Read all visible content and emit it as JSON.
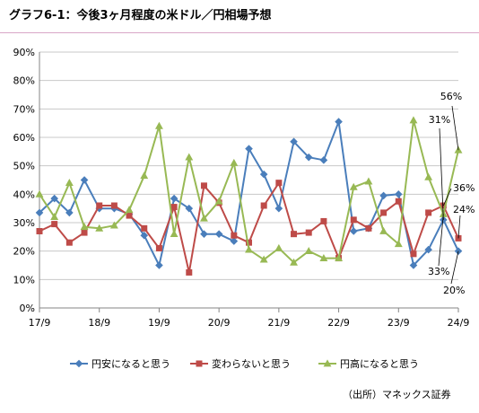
{
  "title": "グラフ6-1：今後3ヶ月程度の米ドル／円相場予想",
  "source": "（出所）マネックス証券",
  "chart_data": {
    "type": "line",
    "title": "グラフ6-1：今後3ヶ月程度の米ドル／円相場予想",
    "xlabel": "",
    "ylabel": "",
    "ylim": [
      0,
      90
    ],
    "yticks": [
      0,
      10,
      20,
      30,
      40,
      50,
      60,
      70,
      80,
      90
    ],
    "ytick_labels": [
      "0%",
      "10%",
      "20%",
      "30%",
      "40%",
      "50%",
      "60%",
      "70%",
      "80%",
      "90%"
    ],
    "x_tick_labels": [
      "17/9",
      "18/9",
      "19/9",
      "20/9",
      "21/9",
      "22/9",
      "23/9",
      "24/9"
    ],
    "grid": true,
    "legend_position": "bottom",
    "series": [
      {
        "name": "円安になると思う",
        "color": "#4a7ebb",
        "marker": "diamond",
        "values": [
          33.5,
          38.5,
          33.5,
          45,
          35,
          35,
          33,
          25.5,
          15,
          38.5,
          35,
          26,
          26,
          23.5,
          56,
          47,
          35,
          58.5,
          53,
          52,
          65.5,
          27,
          28,
          39.5,
          40,
          15,
          20.5,
          31,
          20
        ]
      },
      {
        "name": "変わらないと思う",
        "color": "#be4b48",
        "marker": "square",
        "values": [
          27,
          29.5,
          23,
          26.5,
          36,
          36,
          32.5,
          28,
          21,
          35.5,
          12.5,
          43,
          37,
          25.5,
          23,
          36,
          44,
          26,
          26.5,
          30.5,
          17.5,
          31,
          28,
          33.5,
          37.5,
          19,
          33.5,
          36,
          24.5
        ]
      },
      {
        "name": "円高になると思う",
        "color": "#98b954",
        "marker": "triangle",
        "values": [
          40,
          32,
          44,
          28.5,
          28,
          29,
          34.5,
          46.5,
          64,
          26,
          53,
          31.5,
          37.5,
          51,
          20.5,
          17,
          21,
          16,
          20,
          17.5,
          17.5,
          42.5,
          44.5,
          27,
          22.5,
          66,
          46,
          33,
          55.5
        ]
      }
    ],
    "annotations": [
      "56%",
      "31%",
      "36%",
      "24%",
      "33%",
      "20%"
    ]
  }
}
